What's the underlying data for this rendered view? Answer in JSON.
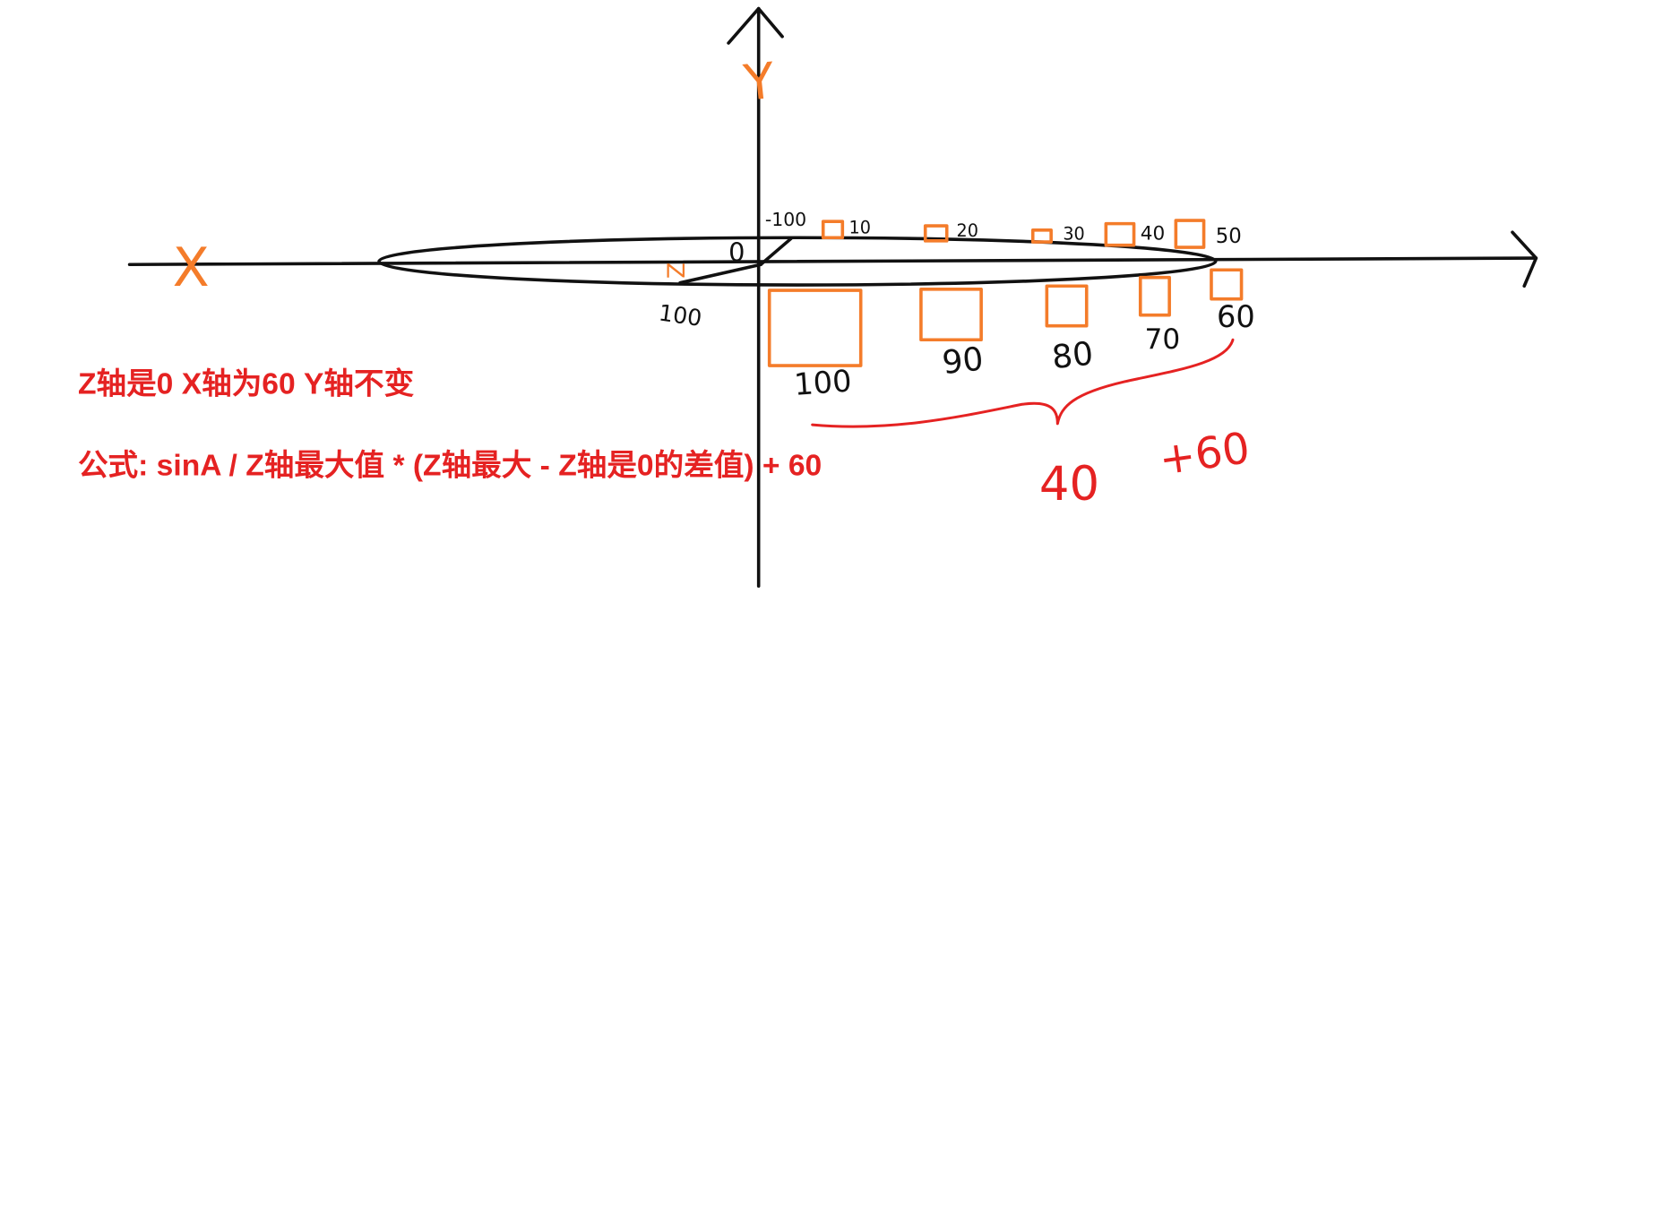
{
  "axes": {
    "y_label": "Y",
    "x_label": "X",
    "z_label": "Z"
  },
  "ellipse_labels": {
    "back_z": "-100",
    "front_z": "100",
    "angle": "0"
  },
  "boxes_upper": [
    "10",
    "20",
    "30",
    "40",
    "50"
  ],
  "boxes_lower": [
    "100",
    "90",
    "80",
    "70",
    "60"
  ],
  "brace_value": "40",
  "offset_value": "+60",
  "notes": {
    "line1": "Z轴是0  X轴为60 Y轴不变",
    "line2": "公式: sinA  / Z轴最大值 * (Z轴最大 - Z轴是0的差值) + 60"
  },
  "colors": {
    "ink": "#111111",
    "orange": "#f47c2a",
    "red": "#e52222"
  }
}
